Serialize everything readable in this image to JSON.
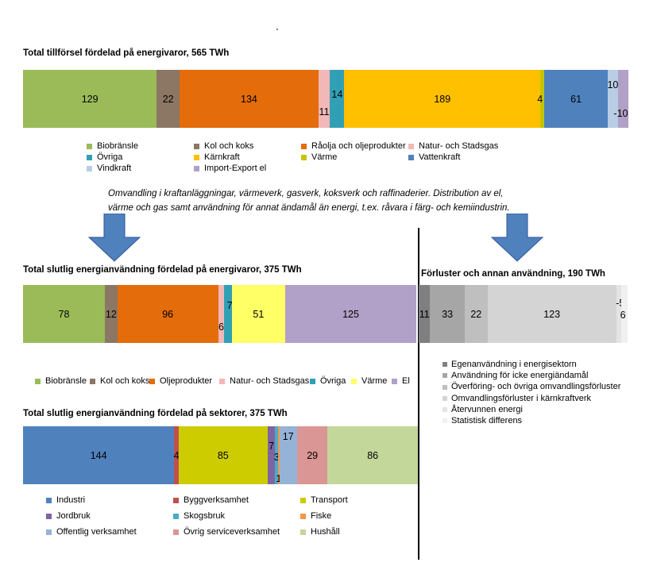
{
  "chart_data": [
    {
      "type": "bar",
      "orientation": "horizontal-stacked",
      "title": "Total tillförsel fördelad på energivaror, 565 TWh",
      "series": [
        {
          "name": "Biobränsle",
          "value": 129,
          "color": "#9BBB59"
        },
        {
          "name": "Kol och koks",
          "value": 22,
          "color": "#8B7764"
        },
        {
          "name": "Råolja och oljeprodukter",
          "value": 134,
          "color": "#E46C0A"
        },
        {
          "name": "Natur- och Stadsgas",
          "value": 11,
          "color": "#F2B8B8"
        },
        {
          "name": "Övriga",
          "value": 14,
          "color": "#31A0B5"
        },
        {
          "name": "Kärnkraft",
          "value": 189,
          "color": "#FFC000"
        },
        {
          "name": "Värme",
          "value": 4,
          "color": "#C4C400"
        },
        {
          "name": "Vattenkraft",
          "value": 61,
          "color": "#4F81BD"
        },
        {
          "name": "Vindkraft",
          "value": 10,
          "color": "#B9CDE5"
        },
        {
          "name": "Import-Export el",
          "value": -10,
          "color": "#B1A0C7"
        }
      ]
    },
    {
      "type": "bar",
      "orientation": "horizontal-stacked",
      "title": "Total slutlig energianvändning fördelad på energivaror, 375 TWh",
      "series": [
        {
          "name": "Biobränsle",
          "value": 78,
          "color": "#9BBB59"
        },
        {
          "name": "Kol och koks",
          "value": 12,
          "color": "#8B7764"
        },
        {
          "name": "Oljeprodukter",
          "value": 96,
          "color": "#E46C0A"
        },
        {
          "name": "Natur- och Stadsgas",
          "value": 6,
          "color": "#F2B8B8"
        },
        {
          "name": "Övriga",
          "value": 7,
          "color": "#31A0B5"
        },
        {
          "name": "Värme",
          "value": 51,
          "color": "#FFFF66"
        },
        {
          "name": "El",
          "value": 125,
          "color": "#B1A0C7"
        }
      ]
    },
    {
      "type": "bar",
      "orientation": "horizontal-stacked",
      "title": "Förluster och annan användning, 190 TWh",
      "series": [
        {
          "name": "Egenanvändning i energisektorn",
          "value": 11,
          "color": "#7F7F7F"
        },
        {
          "name": "Användning för icke energiändamål",
          "value": 33,
          "color": "#A6A6A6"
        },
        {
          "name": "Överföring- och övriga omvandlingsförluster",
          "value": 22,
          "color": "#BFBFBF"
        },
        {
          "name": "Omvandlingsförluster i kärnkraftverk",
          "value": 123,
          "color": "#D4D4D4"
        },
        {
          "name": "Återvunnen energi",
          "value": -5,
          "color": "#E4E4E4"
        },
        {
          "name": "Statistisk differens",
          "value": 6,
          "color": "#F0F0F0"
        }
      ]
    },
    {
      "type": "bar",
      "orientation": "horizontal-stacked",
      "title": "Total slutlig energianvändning fördelad på sektorer, 375 TWh",
      "series": [
        {
          "name": "Industri",
          "value": 144,
          "color": "#4F81BD"
        },
        {
          "name": "Byggverksamhet",
          "value": 4,
          "color": "#C0504D"
        },
        {
          "name": "Transport",
          "value": 85,
          "color": "#CCCC00"
        },
        {
          "name": "Jordbruk",
          "value": 7,
          "color": "#8064A2"
        },
        {
          "name": "Skogsbruk",
          "value": 3,
          "color": "#4BACC6"
        },
        {
          "name": "Fiske",
          "value": 1,
          "color": "#F79646"
        },
        {
          "name": "Offentlig verksamhet",
          "value": 17,
          "color": "#95B3D7"
        },
        {
          "name": "Övrig serviceverksamhet",
          "value": 29,
          "color": "#DA9694"
        },
        {
          "name": "Hushåll",
          "value": 86,
          "color": "#C4D79B"
        }
      ]
    }
  ],
  "description_lines": [
    "Omvandling i kraftanläggningar, värmeverk, gasverk, koksverk och raffinaderier. Distribution av el,",
    "värme och gas samt användning för annat ändamål än energi, t.ex. råvara i färg- och kemiindustrin."
  ],
  "arrow_color": "#4F81BD"
}
